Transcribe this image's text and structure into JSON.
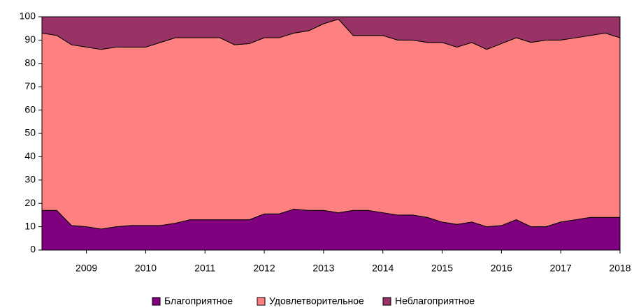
{
  "chart_data": {
    "type": "stacked_area",
    "x": [
      2008.25,
      2008.5,
      2008.75,
      2009,
      2009.25,
      2009.5,
      2009.75,
      2010,
      2010.25,
      2010.5,
      2010.75,
      2011,
      2011.25,
      2011.5,
      2011.75,
      2012,
      2012.25,
      2012.5,
      2012.75,
      2013,
      2013.25,
      2013.5,
      2013.75,
      2014,
      2014.25,
      2014.5,
      2014.75,
      2015,
      2015.25,
      2015.5,
      2015.75,
      2016,
      2016.25,
      2016.5,
      2016.75,
      2017,
      2017.25,
      2017.5,
      2017.75,
      2018
    ],
    "series": [
      {
        "name": "Благоприятное",
        "color": "#800080",
        "values": [
          17,
          17,
          10.5,
          10,
          9,
          10,
          10.5,
          10.5,
          10.5,
          11.5,
          13,
          13,
          13,
          13,
          13,
          15.5,
          15.5,
          17.5,
          17,
          17,
          16,
          17,
          17,
          16,
          15,
          15,
          14,
          12,
          11,
          12,
          10,
          10.5,
          13,
          10,
          10,
          12,
          13,
          14,
          14,
          14
        ]
      },
      {
        "name": "Удовлетворительное",
        "color": "#ff8080",
        "values": [
          76,
          75,
          77.5,
          77,
          77,
          77,
          76.5,
          76.5,
          78.5,
          79.5,
          78,
          78,
          78,
          75,
          75.5,
          75.5,
          75.5,
          75.5,
          77,
          80,
          83,
          75,
          75,
          76,
          75,
          75,
          75,
          77,
          76,
          77,
          76,
          78,
          78,
          79,
          80,
          78,
          78,
          78,
          79,
          77
        ]
      },
      {
        "name": "Неблагоприятное",
        "color": "#993366",
        "values": [
          7,
          8,
          12,
          13,
          14,
          13,
          13,
          13,
          11,
          9,
          9,
          9,
          9,
          12,
          11.5,
          9,
          9,
          7,
          6,
          3,
          1,
          8,
          8,
          8,
          10,
          10,
          11,
          11,
          13,
          11,
          14,
          11.5,
          9,
          11,
          10,
          10,
          9,
          8,
          7,
          9
        ]
      }
    ],
    "xlim": [
      2008.25,
      2018
    ],
    "xticks": [
      2009,
      2010,
      2011,
      2012,
      2013,
      2014,
      2015,
      2016,
      2017,
      2018
    ],
    "ylim": [
      0,
      100
    ],
    "yticks": [
      0,
      10,
      20,
      30,
      40,
      50,
      60,
      70,
      80,
      90,
      100
    ],
    "legend": "bottom"
  }
}
